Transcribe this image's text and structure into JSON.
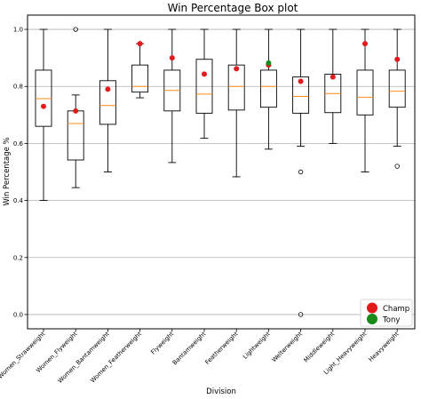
{
  "chart_data": {
    "type": "box",
    "title": "Win Percentage Box plot",
    "xlabel": "Division",
    "ylabel": "Win Percentage %",
    "ylim": [
      -0.05,
      1.05
    ],
    "yticks": [
      "0.0",
      "0.2",
      "0.4",
      "0.6",
      "0.8",
      "1.0"
    ],
    "grid": "horizontal",
    "legend_position": "bottom-right",
    "categories": [
      "Women_Strawweight",
      "Women_Flyweight",
      "Women_Bantamweight",
      "Women_Featherweight",
      "Flyweight",
      "Bantamweight",
      "Featherweight",
      "Lightweight",
      "Welterweight",
      "Middleweight",
      "Light_Heavyweight",
      "Heavyweight"
    ],
    "boxes": [
      {
        "whisker_low": 0.4,
        "q1": 0.66,
        "median": 0.757,
        "q3": 0.857,
        "whisker_high": 1.0,
        "outliers": []
      },
      {
        "whisker_low": 0.445,
        "q1": 0.542,
        "median": 0.67,
        "q3": 0.714,
        "whisker_high": 0.77,
        "outliers": [
          1.0
        ]
      },
      {
        "whisker_low": 0.5,
        "q1": 0.667,
        "median": 0.733,
        "q3": 0.82,
        "whisker_high": 1.0,
        "outliers": []
      },
      {
        "whisker_low": 0.76,
        "q1": 0.78,
        "median": 0.8,
        "q3": 0.875,
        "whisker_high": 0.95,
        "outliers": []
      },
      {
        "whisker_low": 0.533,
        "q1": 0.714,
        "median": 0.786,
        "q3": 0.857,
        "whisker_high": 1.0,
        "outliers": []
      },
      {
        "whisker_low": 0.618,
        "q1": 0.706,
        "median": 0.773,
        "q3": 0.895,
        "whisker_high": 1.0,
        "outliers": []
      },
      {
        "whisker_low": 0.483,
        "q1": 0.717,
        "median": 0.8,
        "q3": 0.875,
        "whisker_high": 1.0,
        "outliers": []
      },
      {
        "whisker_low": 0.58,
        "q1": 0.727,
        "median": 0.8,
        "q3": 0.857,
        "whisker_high": 1.0,
        "outliers": []
      },
      {
        "whisker_low": 0.59,
        "q1": 0.706,
        "median": 0.765,
        "q3": 0.833,
        "whisker_high": 1.0,
        "outliers": [
          0.5,
          0.0
        ]
      },
      {
        "whisker_low": 0.6,
        "q1": 0.708,
        "median": 0.775,
        "q3": 0.843,
        "whisker_high": 1.0,
        "outliers": []
      },
      {
        "whisker_low": 0.5,
        "q1": 0.7,
        "median": 0.762,
        "q3": 0.857,
        "whisker_high": 1.0,
        "outliers": []
      },
      {
        "whisker_low": 0.59,
        "q1": 0.727,
        "median": 0.783,
        "q3": 0.857,
        "whisker_high": 1.0,
        "outliers": [
          0.52
        ]
      }
    ],
    "series": [
      {
        "name": "Champ",
        "color": "#e31a1c",
        "values": [
          0.73,
          0.714,
          0.79,
          0.95,
          0.9,
          0.843,
          0.862,
          0.875,
          0.818,
          0.833,
          0.95,
          0.895
        ]
      },
      {
        "name": "Tony",
        "color": "#1a8a1a",
        "values": [
          null,
          null,
          null,
          null,
          null,
          null,
          null,
          0.882,
          null,
          null,
          null,
          null
        ]
      }
    ],
    "median_color": "#ff8c1a"
  }
}
